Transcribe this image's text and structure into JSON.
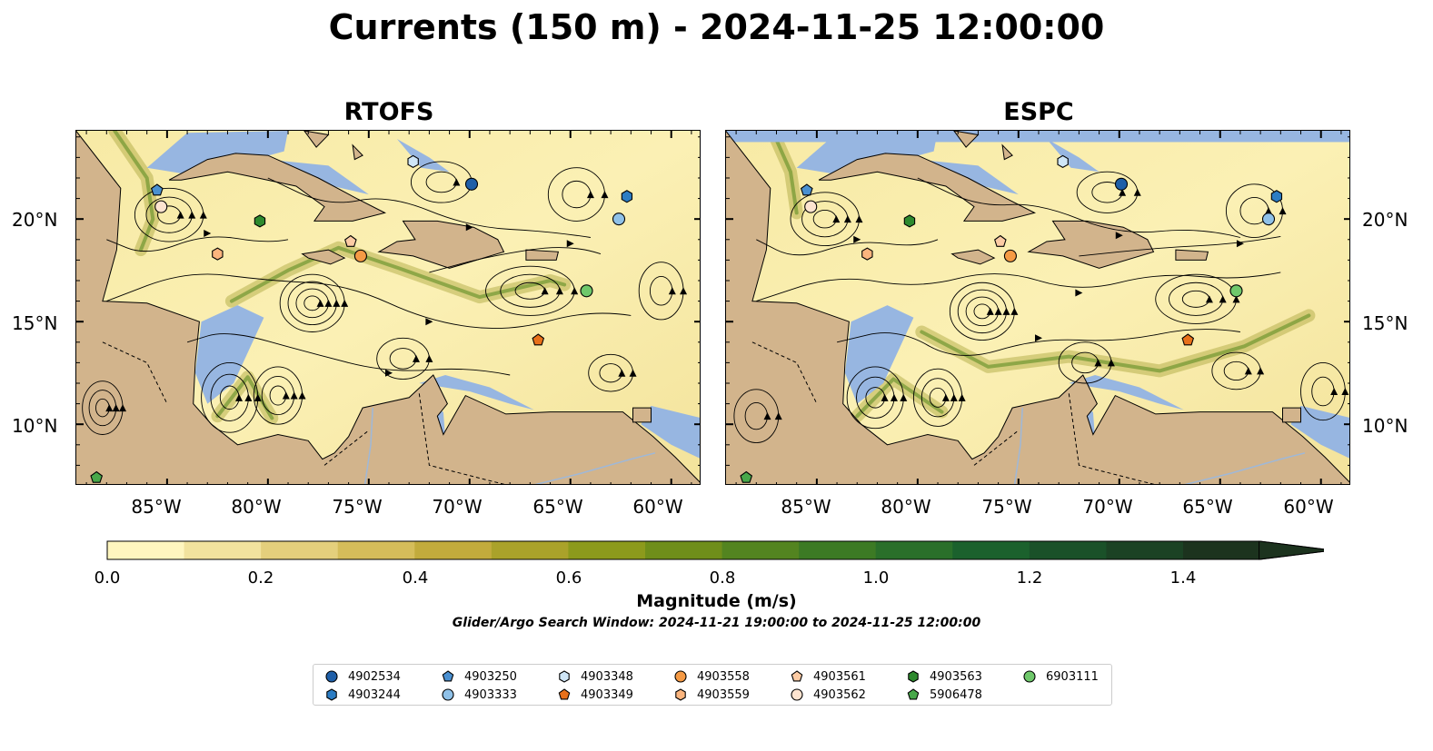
{
  "figure": {
    "title": "Currents (150 m) - 2024-11-25 12:00:00",
    "panels": [
      {
        "title": "RTOFS"
      },
      {
        "title": "ESPC"
      }
    ],
    "left_axis_labels": [
      "20°N",
      "15°N",
      "10°N"
    ],
    "right_axis_labels": [
      "20°N",
      "15°N",
      "10°N"
    ],
    "bottom_axis_labels": [
      "85°W",
      "80°W",
      "75°W",
      "70°W",
      "65°W",
      "60°W"
    ],
    "extent": {
      "lon": [
        -89.5,
        -58.5
      ],
      "lat": [
        7.0,
        24.3
      ]
    },
    "colors": {
      "land": "#d2b48c",
      "ocean_shallow": "#97b6e1",
      "river": "#9fb8d8",
      "current_low": "#fff7bc",
      "current_high": "#1b2e18"
    }
  },
  "colorbar": {
    "label": "Magnitude (m/s)",
    "ticks": [
      "0.0",
      "0.2",
      "0.4",
      "0.6",
      "0.8",
      "1.0",
      "1.2",
      "1.4"
    ],
    "range": [
      0.0,
      1.5
    ],
    "colors": [
      "#fff6bf",
      "#f2e39e",
      "#e4cf7c",
      "#d5bd5a",
      "#c2ab3c",
      "#aaa22a",
      "#8c9a1c",
      "#6f8e1a",
      "#538420",
      "#3c7a24",
      "#2a6f2a",
      "#1b612d",
      "#1a5129",
      "#1b4224",
      "#1c331e"
    ]
  },
  "search_window": "Glider/Argo Search Window: 2024-11-21 19:00:00 to 2024-11-25 12:00:00",
  "legend": {
    "items": [
      {
        "label": "4902534",
        "marker": "circle",
        "color": "#1f5fa8"
      },
      {
        "label": "4903244",
        "marker": "hexagon",
        "color": "#2c7dc4"
      },
      {
        "label": "4903250",
        "marker": "pentagon",
        "color": "#4a90d1"
      },
      {
        "label": "4903333",
        "marker": "circle",
        "color": "#8fc1e8"
      },
      {
        "label": "4903348",
        "marker": "hexagon",
        "color": "#cfe6f7"
      },
      {
        "label": "4903349",
        "marker": "pentagon",
        "color": "#e8701a"
      },
      {
        "label": "4903558",
        "marker": "circle",
        "color": "#f59a45"
      },
      {
        "label": "4903559",
        "marker": "hexagon",
        "color": "#fbb57e"
      },
      {
        "label": "4903561",
        "marker": "pentagon",
        "color": "#fccba4"
      },
      {
        "label": "4903562",
        "marker": "circle",
        "color": "#fde4d0"
      },
      {
        "label": "4903563",
        "marker": "hexagon",
        "color": "#2e8a2e"
      },
      {
        "label": "5906478",
        "marker": "pentagon",
        "color": "#48a84a"
      },
      {
        "label": "6903111",
        "marker": "circle",
        "color": "#6fc86b"
      }
    ]
  },
  "floats": [
    {
      "id": "4902534",
      "lon": -69.9,
      "lat": 21.7
    },
    {
      "id": "4903244",
      "lon": -62.2,
      "lat": 21.1
    },
    {
      "id": "4903250",
      "lon": -85.5,
      "lat": 21.4
    },
    {
      "id": "4903333",
      "lon": -62.6,
      "lat": 20.0
    },
    {
      "id": "4903348",
      "lon": -72.8,
      "lat": 22.8
    },
    {
      "id": "4903349",
      "lon": -66.6,
      "lat": 14.1
    },
    {
      "id": "4903558",
      "lon": -75.4,
      "lat": 18.2
    },
    {
      "id": "4903559",
      "lon": -82.5,
      "lat": 18.3
    },
    {
      "id": "4903561",
      "lon": -75.9,
      "lat": 18.9
    },
    {
      "id": "4903562",
      "lon": -85.3,
      "lat": 20.6
    },
    {
      "id": "4903563",
      "lon": -80.4,
      "lat": 19.9
    },
    {
      "id": "5906478",
      "lon": -88.5,
      "lat": 7.4
    },
    {
      "id": "6903111",
      "lon": -64.2,
      "lat": 16.5
    }
  ]
}
